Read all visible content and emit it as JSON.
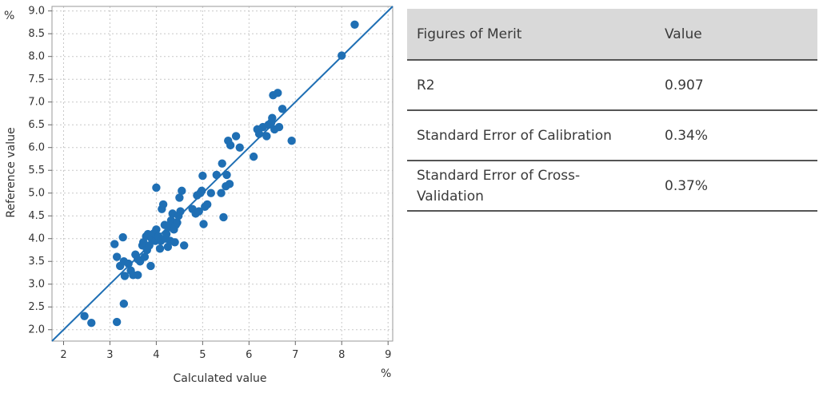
{
  "chart_data": {
    "type": "scatter",
    "xlabel": "Calculated value",
    "ylabel": "Reference value",
    "x_unit": "%",
    "y_unit": "%",
    "xlim": [
      1.75,
      9.1
    ],
    "ylim": [
      1.75,
      9.1
    ],
    "x_ticks": [
      "2",
      "3",
      "4",
      "5",
      "6",
      "7",
      "8",
      "9"
    ],
    "y_ticks": [
      "2.0",
      "2.5",
      "3.0",
      "3.5",
      "4.0",
      "4.5",
      "5.0",
      "5.5",
      "6.0",
      "6.5",
      "7.0",
      "7.5",
      "8.0",
      "8.5",
      "9.0"
    ],
    "grid": true,
    "fit_line": {
      "slope": 1,
      "intercept": 0
    },
    "colors": {
      "marker": "#1f6fb4",
      "line": "#1f6fb4",
      "grid": "#c8c8c8"
    },
    "points": [
      [
        2.45,
        2.3
      ],
      [
        2.6,
        2.15
      ],
      [
        3.15,
        2.17
      ],
      [
        3.3,
        2.57
      ],
      [
        3.1,
        3.88
      ],
      [
        3.15,
        3.6
      ],
      [
        3.22,
        3.4
      ],
      [
        3.3,
        3.5
      ],
      [
        3.32,
        3.18
      ],
      [
        3.28,
        4.03
      ],
      [
        3.4,
        3.45
      ],
      [
        3.45,
        3.3
      ],
      [
        3.5,
        3.2
      ],
      [
        3.55,
        3.65
      ],
      [
        3.6,
        3.2
      ],
      [
        3.6,
        3.55
      ],
      [
        3.65,
        3.5
      ],
      [
        3.7,
        3.85
      ],
      [
        3.72,
        3.92
      ],
      [
        3.75,
        3.6
      ],
      [
        3.78,
        4.05
      ],
      [
        3.8,
        3.75
      ],
      [
        3.82,
        4.1
      ],
      [
        3.85,
        3.85
      ],
      [
        3.88,
        3.4
      ],
      [
        3.9,
        4.0
      ],
      [
        3.95,
        4.12
      ],
      [
        3.98,
        3.95
      ],
      [
        4.0,
        4.2
      ],
      [
        4.0,
        5.12
      ],
      [
        4.05,
        4.05
      ],
      [
        4.08,
        3.78
      ],
      [
        4.1,
        3.95
      ],
      [
        4.12,
        4.65
      ],
      [
        4.15,
        4.75
      ],
      [
        4.18,
        4.3
      ],
      [
        4.2,
        4.0
      ],
      [
        4.22,
        4.1
      ],
      [
        4.25,
        3.82
      ],
      [
        4.28,
        4.25
      ],
      [
        4.3,
        3.95
      ],
      [
        4.32,
        4.4
      ],
      [
        4.35,
        4.55
      ],
      [
        4.38,
        4.2
      ],
      [
        4.4,
        3.92
      ],
      [
        4.42,
        4.3
      ],
      [
        4.45,
        4.35
      ],
      [
        4.48,
        4.5
      ],
      [
        4.5,
        4.9
      ],
      [
        4.52,
        4.6
      ],
      [
        4.55,
        5.05
      ],
      [
        4.6,
        3.85
      ],
      [
        4.78,
        4.65
      ],
      [
        4.85,
        4.55
      ],
      [
        4.88,
        4.95
      ],
      [
        4.92,
        4.6
      ],
      [
        4.95,
        5.0
      ],
      [
        4.98,
        5.05
      ],
      [
        5.0,
        5.38
      ],
      [
        5.02,
        4.32
      ],
      [
        5.05,
        4.7
      ],
      [
        5.1,
        4.75
      ],
      [
        5.18,
        5.0
      ],
      [
        5.3,
        5.4
      ],
      [
        5.4,
        5.0
      ],
      [
        5.42,
        5.65
      ],
      [
        5.45,
        4.47
      ],
      [
        5.5,
        5.15
      ],
      [
        5.52,
        5.4
      ],
      [
        5.55,
        6.15
      ],
      [
        5.6,
        6.05
      ],
      [
        5.58,
        5.2
      ],
      [
        5.72,
        6.25
      ],
      [
        5.8,
        6.0
      ],
      [
        6.1,
        5.8
      ],
      [
        6.18,
        6.4
      ],
      [
        6.22,
        6.3
      ],
      [
        6.3,
        6.45
      ],
      [
        6.38,
        6.25
      ],
      [
        6.42,
        6.5
      ],
      [
        6.48,
        6.55
      ],
      [
        6.5,
        6.65
      ],
      [
        6.55,
        6.4
      ],
      [
        6.52,
        7.15
      ],
      [
        6.62,
        7.2
      ],
      [
        6.65,
        6.45
      ],
      [
        6.72,
        6.85
      ],
      [
        6.92,
        6.15
      ],
      [
        8.0,
        8.02
      ],
      [
        8.28,
        8.7
      ]
    ]
  },
  "table": {
    "headers": [
      "Figures of Merit",
      "Value"
    ],
    "rows": [
      {
        "metric": "R2",
        "value": "0.907"
      },
      {
        "metric": "Standard Error of Calibration",
        "value": "0.34%"
      },
      {
        "metric": "Standard Error of Cross-Validation",
        "value": "0.37%"
      }
    ]
  }
}
